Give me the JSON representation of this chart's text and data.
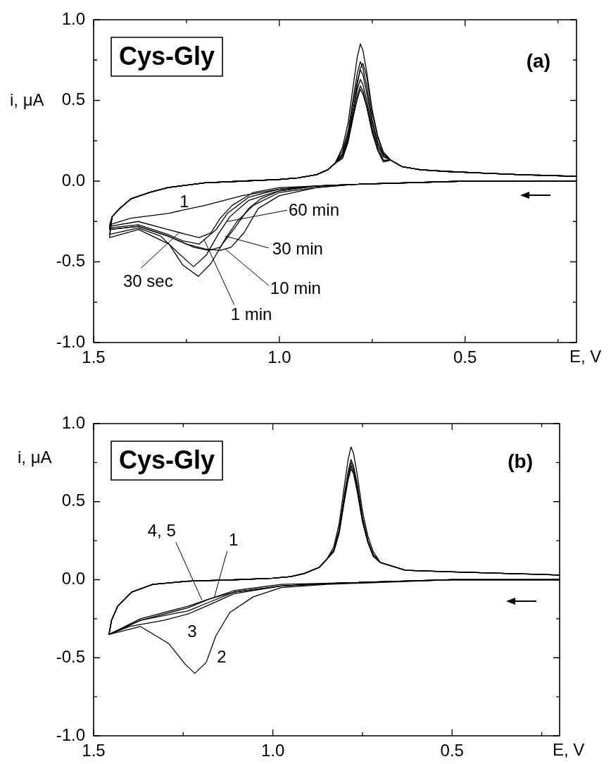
{
  "chart_data": [
    {
      "type": "line",
      "title": "Cys-Gly",
      "subtitle": "(a)",
      "xlabel": "E, V",
      "ylabel": "i, μA",
      "xlim": [
        1.5,
        0.2
      ],
      "ylim": [
        -1,
        1
      ],
      "xticks": [
        {
          "value": 1.5,
          "label": "1.5"
        },
        {
          "value": 1.25,
          "label": null
        },
        {
          "value": 1,
          "label": "1.0"
        },
        {
          "value": 0.75,
          "label": null
        },
        {
          "value": 0.5,
          "label": "0.5"
        },
        {
          "value": 0.25,
          "label": null
        }
      ],
      "yticks": [
        {
          "value": -1,
          "label": "-1.0"
        },
        {
          "value": -0.75,
          "label": null
        },
        {
          "value": -0.5,
          "label": "-0.5"
        },
        {
          "value": -0.25,
          "label": null
        },
        {
          "value": 0,
          "label": "0.0"
        },
        {
          "value": 0.25,
          "label": null
        },
        {
          "value": 0.5,
          "label": "0.5"
        },
        {
          "value": 0.75,
          "label": null
        },
        {
          "value": 1,
          "label": "1.0"
        }
      ],
      "annotations": [
        "1",
        {
          "text": "30 sec",
          "x": 1.27,
          "y": -0.32
        },
        {
          "text": "1 min",
          "x": 1.203,
          "y": -0.36
        },
        {
          "text": "10 min",
          "x": 1.146,
          "y": -0.42
        },
        {
          "text": "30 min",
          "x": 1.146,
          "y": -0.34
        },
        {
          "text": "60 min",
          "x": 1.14,
          "y": -0.25
        }
      ],
      "series": [
        {
          "color": "#000000",
          "x": [
            0.2,
            0.5,
            0.8,
            0.9,
            1.0,
            1.1,
            1.2,
            1.3,
            1.4,
            1.457,
            1.45,
            1.43,
            1.4,
            1.35,
            1.3,
            1.2,
            1.1,
            1.0,
            0.95,
            0.9,
            0.87,
            0.85,
            0.83,
            0.815,
            0.8,
            0.79,
            0.782,
            0.775,
            0.765,
            0.75,
            0.735,
            0.72,
            0.7,
            0.67,
            0.62,
            0.55,
            0.45,
            0.35,
            0.2
          ],
          "values": [
            0,
            0,
            -0.02,
            -0.03,
            -0.05,
            -0.09,
            -0.15,
            -0.2,
            -0.23,
            -0.27,
            -0.22,
            -0.17,
            -0.11,
            -0.07,
            -0.04,
            -0.01,
            0,
            0.01,
            0.02,
            0.04,
            0.07,
            0.11,
            0.21,
            0.36,
            0.61,
            0.77,
            0.85,
            0.81,
            0.68,
            0.44,
            0.28,
            0.18,
            0.13,
            0.09,
            0.07,
            0.06,
            0.05,
            0.04,
            0.03
          ]
        },
        {
          "color": "#000000",
          "x": [
            0.2,
            0.5,
            0.8,
            0.9,
            1.0,
            1.07,
            1.127,
            1.159,
            1.184,
            1.216,
            1.25,
            1.3,
            1.38,
            1.457,
            1.45,
            1.43,
            1.4,
            1.35,
            1.3,
            1.2,
            1.1,
            1.0,
            0.95,
            0.9,
            0.87,
            0.85,
            0.83,
            0.815,
            0.8,
            0.79,
            0.782,
            0.775,
            0.765,
            0.75,
            0.735,
            0.72,
            0.7,
            0.67,
            0.62,
            0.55,
            0.45,
            0.35,
            0.2
          ],
          "values": [
            0,
            0,
            -0.02,
            -0.03,
            -0.04,
            -0.07,
            -0.15,
            -0.23,
            -0.32,
            -0.35,
            -0.33,
            -0.3,
            -0.25,
            -0.28,
            -0.22,
            -0.17,
            -0.11,
            -0.07,
            -0.04,
            -0.01,
            0,
            0.01,
            0.02,
            0.04,
            0.07,
            0.11,
            0.19,
            0.31,
            0.53,
            0.67,
            0.74,
            0.7,
            0.59,
            0.38,
            0.24,
            0.16,
            0.13,
            0.09,
            0.07,
            0.06,
            0.05,
            0.04,
            0.03
          ]
        },
        {
          "color": "#000000",
          "x": [
            0.2,
            0.5,
            0.8,
            0.9,
            1.0,
            1.083,
            1.14,
            1.17,
            1.216,
            1.26,
            1.3,
            1.38,
            1.457,
            1.45,
            1.43,
            1.4,
            1.35,
            1.3,
            1.2,
            1.1,
            1.0,
            0.95,
            0.9,
            0.87,
            0.85,
            0.83,
            0.815,
            0.8,
            0.79,
            0.782,
            0.775,
            0.765,
            0.75,
            0.735,
            0.72,
            0.7,
            0.67,
            0.62,
            0.55,
            0.45,
            0.35,
            0.2
          ],
          "values": [
            0,
            0,
            -0.02,
            -0.03,
            -0.05,
            -0.1,
            -0.2,
            -0.3,
            -0.39,
            -0.37,
            -0.33,
            -0.27,
            -0.29,
            -0.22,
            -0.17,
            -0.11,
            -0.07,
            -0.04,
            -0.01,
            0,
            0.01,
            0.02,
            0.04,
            0.07,
            0.11,
            0.17,
            0.29,
            0.5,
            0.62,
            0.69,
            0.66,
            0.55,
            0.36,
            0.23,
            0.15,
            0.13,
            0.09,
            0.07,
            0.06,
            0.05,
            0.04,
            0.03
          ]
        },
        {
          "color": "#000000",
          "x": [
            0.2,
            0.5,
            0.8,
            0.9,
            1.0,
            1.05,
            1.083,
            1.12,
            1.16,
            1.19,
            1.23,
            1.3,
            1.38,
            1.457,
            1.45,
            1.43,
            1.4,
            1.35,
            1.3,
            1.2,
            1.1,
            1.0,
            0.95,
            0.9,
            0.87,
            0.85,
            0.83,
            0.815,
            0.8,
            0.79,
            0.782,
            0.775,
            0.765,
            0.75,
            0.735,
            0.72,
            0.7,
            0.67,
            0.62,
            0.55,
            0.45,
            0.35,
            0.2
          ],
          "values": [
            0,
            0,
            -0.02,
            -0.03,
            -0.06,
            -0.11,
            -0.17,
            -0.29,
            -0.41,
            -0.43,
            -0.41,
            -0.34,
            -0.28,
            -0.3,
            -0.22,
            -0.17,
            -0.11,
            -0.07,
            -0.04,
            -0.01,
            0,
            0.01,
            0.02,
            0.04,
            0.07,
            0.11,
            0.15,
            0.25,
            0.42,
            0.53,
            0.59,
            0.56,
            0.47,
            0.31,
            0.19,
            0.12,
            0.13,
            0.09,
            0.07,
            0.06,
            0.05,
            0.04,
            0.03
          ]
        },
        {
          "color": "#000000",
          "x": [
            0.2,
            0.5,
            0.8,
            0.9,
            1.0,
            1.057,
            1.095,
            1.13,
            1.16,
            1.2,
            1.25,
            1.3,
            1.38,
            1.457,
            1.45,
            1.43,
            1.4,
            1.35,
            1.3,
            1.2,
            1.1,
            1.0,
            0.95,
            0.9,
            0.87,
            0.85,
            0.83,
            0.815,
            0.8,
            0.79,
            0.782,
            0.775,
            0.765,
            0.75,
            0.735,
            0.72,
            0.7,
            0.67,
            0.62,
            0.55,
            0.45,
            0.35,
            0.2
          ],
          "values": [
            0,
            0,
            -0.02,
            -0.04,
            -0.09,
            -0.17,
            -0.32,
            -0.41,
            -0.43,
            -0.42,
            -0.39,
            -0.34,
            -0.28,
            -0.3,
            -0.22,
            -0.17,
            -0.11,
            -0.07,
            -0.04,
            -0.01,
            0,
            0.01,
            0.02,
            0.04,
            0.07,
            0.11,
            0.14,
            0.24,
            0.41,
            0.51,
            0.57,
            0.54,
            0.46,
            0.3,
            0.19,
            0.12,
            0.13,
            0.09,
            0.07,
            0.06,
            0.05,
            0.04,
            0.03
          ]
        },
        {
          "color": "#000000",
          "x": [
            0.2,
            0.5,
            0.8,
            0.9,
            1.0,
            1.083,
            1.133,
            1.165,
            1.197,
            1.231,
            1.27,
            1.32,
            1.38,
            1.457,
            1.45,
            1.43,
            1.4,
            1.35,
            1.3,
            1.2,
            1.1,
            1.0,
            0.95,
            0.9,
            0.87,
            0.85,
            0.83,
            0.815,
            0.8,
            0.79,
            0.782,
            0.775,
            0.765,
            0.75,
            0.735,
            0.72,
            0.7,
            0.67,
            0.62,
            0.55,
            0.45,
            0.35,
            0.2
          ],
          "values": [
            0,
            0,
            -0.02,
            -0.03,
            -0.06,
            -0.12,
            -0.22,
            -0.33,
            -0.46,
            -0.53,
            -0.45,
            -0.34,
            -0.29,
            -0.33,
            -0.22,
            -0.17,
            -0.11,
            -0.07,
            -0.04,
            -0.01,
            0,
            0.01,
            0.02,
            0.04,
            0.07,
            0.11,
            0.17,
            0.28,
            0.45,
            0.6,
            0.7,
            0.73,
            0.65,
            0.42,
            0.27,
            0.17,
            0.13,
            0.09,
            0.07,
            0.06,
            0.05,
            0.04,
            0.03
          ]
        },
        {
          "color": "#000000",
          "x": [
            0.2,
            0.5,
            0.8,
            0.9,
            1.0,
            1.07,
            1.114,
            1.146,
            1.184,
            1.218,
            1.26,
            1.297,
            1.379,
            1.457,
            1.45,
            1.43,
            1.4,
            1.35,
            1.3,
            1.2,
            1.1,
            1.0,
            0.95,
            0.9,
            0.87,
            0.85,
            0.83,
            0.815,
            0.8,
            0.79,
            0.782,
            0.775,
            0.765,
            0.75,
            0.735,
            0.72,
            0.7,
            0.67,
            0.62,
            0.55,
            0.45,
            0.35,
            0.2
          ],
          "values": [
            0,
            0,
            -0.02,
            -0.04,
            -0.07,
            -0.15,
            -0.25,
            -0.36,
            -0.51,
            -0.59,
            -0.52,
            -0.39,
            -0.3,
            -0.35,
            -0.22,
            -0.17,
            -0.11,
            -0.07,
            -0.04,
            -0.01,
            0,
            0.01,
            0.02,
            0.04,
            0.07,
            0.11,
            0.16,
            0.26,
            0.45,
            0.57,
            0.63,
            0.6,
            0.5,
            0.33,
            0.21,
            0.13,
            0.13,
            0.09,
            0.07,
            0.06,
            0.05,
            0.04,
            0.03
          ]
        }
      ]
    },
    {
      "type": "line",
      "title": "Cys-Gly",
      "subtitle": "(b)",
      "xlabel": "E, V",
      "ylabel": "i, μA",
      "xlim": [
        1.5,
        0.2
      ],
      "ylim": [
        -1,
        1
      ],
      "xticks": [
        {
          "value": 1.5,
          "label": "1.5"
        },
        {
          "value": 1.25,
          "label": null
        },
        {
          "value": 1,
          "label": "1.0"
        },
        {
          "value": 0.75,
          "label": null
        },
        {
          "value": 0.5,
          "label": "0.5"
        },
        {
          "value": 0.25,
          "label": null
        }
      ],
      "yticks": [
        {
          "value": -1,
          "label": "-1.0"
        },
        {
          "value": -0.75,
          "label": null
        },
        {
          "value": -0.5,
          "label": "-0.5"
        },
        {
          "value": -0.25,
          "label": null
        },
        {
          "value": 0,
          "label": "0.0"
        },
        {
          "value": 0.25,
          "label": null
        },
        {
          "value": 0.5,
          "label": "0.5"
        },
        {
          "value": 0.75,
          "label": null
        },
        {
          "value": 1,
          "label": "1.0"
        }
      ],
      "annotations": [
        {
          "text": "4, 5",
          "x": 1.198,
          "y": -0.13
        },
        {
          "text": "1",
          "x": 1.163,
          "y": -0.11
        },
        "3",
        "2"
      ],
      "series": [
        {
          "color": "#000000",
          "x": [
            0.2,
            0.5,
            0.8,
            0.976,
            1.108,
            1.173,
            1.237,
            1.369,
            1.457,
            1.45,
            1.433,
            1.394,
            1.335,
            1.24,
            1.1,
            1.0,
            0.95,
            0.912,
            0.87,
            0.85,
            0.83,
            0.815,
            0.8,
            0.79,
            0.782,
            0.775,
            0.765,
            0.75,
            0.735,
            0.72,
            0.7,
            0.63,
            0.5,
            0.35,
            0.2
          ],
          "values": [
            0,
            0,
            -0.02,
            -0.04,
            -0.08,
            -0.14,
            -0.2,
            -0.26,
            -0.35,
            -0.26,
            -0.17,
            -0.08,
            -0.03,
            -0.01,
            0,
            0.01,
            0.02,
            0.04,
            0.08,
            0.13,
            0.21,
            0.36,
            0.61,
            0.77,
            0.85,
            0.81,
            0.68,
            0.44,
            0.28,
            0.18,
            0.11,
            0.06,
            0.05,
            0.04,
            0.03
          ]
        },
        {
          "color": "#000000",
          "x": [
            0.2,
            0.5,
            0.85,
            0.976,
            1.055,
            1.12,
            1.159,
            1.186,
            1.218,
            1.245,
            1.29,
            1.369,
            1.457,
            1.45,
            1.433,
            1.394,
            1.335,
            1.24,
            1.1,
            1.0,
            0.95,
            0.912,
            0.87,
            0.85,
            0.83,
            0.815,
            0.8,
            0.79,
            0.782,
            0.775,
            0.765,
            0.75,
            0.735,
            0.72,
            0.7,
            0.63,
            0.5,
            0.35,
            0.2
          ],
          "values": [
            0,
            0,
            -0.03,
            -0.05,
            -0.11,
            -0.21,
            -0.36,
            -0.53,
            -0.6,
            -0.54,
            -0.41,
            -0.3,
            -0.35,
            -0.26,
            -0.17,
            -0.08,
            -0.03,
            -0.01,
            0,
            0.01,
            0.02,
            0.04,
            0.08,
            0.13,
            0.19,
            0.32,
            0.55,
            0.69,
            0.77,
            0.73,
            0.62,
            0.4,
            0.25,
            0.16,
            0.11,
            0.06,
            0.05,
            0.04,
            0.03
          ]
        },
        {
          "color": "#000000",
          "x": [
            0.2,
            0.5,
            0.8,
            0.976,
            1.108,
            1.186,
            1.237,
            1.304,
            1.4,
            1.457,
            1.45,
            1.433,
            1.394,
            1.335,
            1.24,
            1.1,
            1.0,
            0.95,
            0.912,
            0.87,
            0.85,
            0.83,
            0.815,
            0.8,
            0.79,
            0.782,
            0.775,
            0.765,
            0.75,
            0.735,
            0.72,
            0.7,
            0.63,
            0.5,
            0.35,
            0.2
          ],
          "values": [
            0,
            0,
            -0.02,
            -0.04,
            -0.09,
            -0.17,
            -0.22,
            -0.26,
            -0.3,
            -0.35,
            -0.26,
            -0.17,
            -0.08,
            -0.03,
            -0.01,
            0,
            0.01,
            0.02,
            0.04,
            0.08,
            0.13,
            0.19,
            0.32,
            0.54,
            0.68,
            0.75,
            0.71,
            0.6,
            0.39,
            0.25,
            0.16,
            0.11,
            0.06,
            0.05,
            0.04,
            0.03
          ]
        },
        {
          "color": "#000000",
          "x": [
            0.2,
            0.5,
            0.8,
            0.976,
            1.108,
            1.173,
            1.237,
            1.369,
            1.457,
            1.45,
            1.433,
            1.394,
            1.335,
            1.24,
            1.1,
            1.0,
            0.95,
            0.912,
            0.87,
            0.85,
            0.83,
            0.815,
            0.8,
            0.79,
            0.782,
            0.775,
            0.765,
            0.75,
            0.735,
            0.72,
            0.7,
            0.63,
            0.5,
            0.35,
            0.2
          ],
          "values": [
            0,
            0,
            -0.02,
            -0.04,
            -0.08,
            -0.12,
            -0.18,
            -0.26,
            -0.35,
            -0.26,
            -0.17,
            -0.08,
            -0.03,
            -0.01,
            0,
            0.01,
            0.02,
            0.04,
            0.08,
            0.13,
            0.18,
            0.3,
            0.52,
            0.65,
            0.73,
            0.69,
            0.58,
            0.38,
            0.24,
            0.15,
            0.11,
            0.06,
            0.05,
            0.04,
            0.03
          ]
        },
        {
          "color": "#000000",
          "x": [
            0.2,
            0.5,
            0.8,
            0.976,
            1.108,
            1.173,
            1.237,
            1.369,
            1.457,
            1.45,
            1.433,
            1.394,
            1.335,
            1.24,
            1.1,
            1.0,
            0.95,
            0.912,
            0.87,
            0.85,
            0.83,
            0.815,
            0.8,
            0.79,
            0.782,
            0.775,
            0.765,
            0.75,
            0.735,
            0.72,
            0.7,
            0.63,
            0.5,
            0.35,
            0.2
          ],
          "values": [
            0,
            0,
            -0.02,
            -0.03,
            -0.07,
            -0.12,
            -0.17,
            -0.25,
            -0.35,
            -0.26,
            -0.17,
            -0.08,
            -0.03,
            -0.01,
            0,
            0.01,
            0.02,
            0.04,
            0.08,
            0.13,
            0.18,
            0.3,
            0.51,
            0.64,
            0.71,
            0.68,
            0.57,
            0.37,
            0.24,
            0.15,
            0.11,
            0.06,
            0.05,
            0.04,
            0.03
          ]
        }
      ]
    }
  ]
}
